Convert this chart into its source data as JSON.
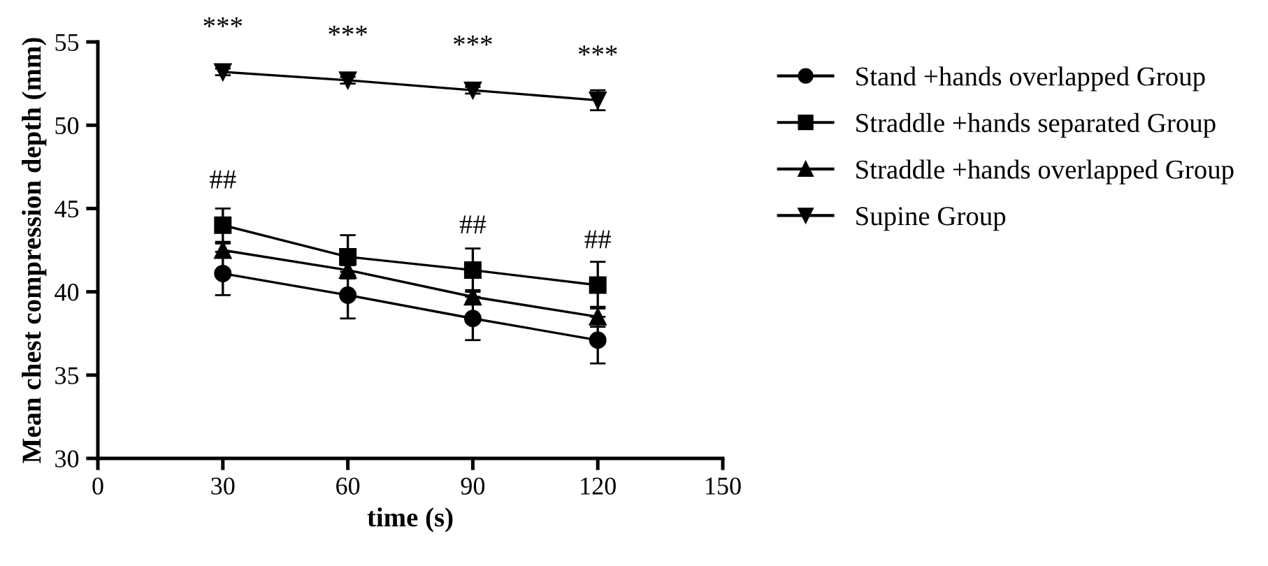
{
  "chart_data": {
    "type": "line",
    "xlabel": "time (s)",
    "ylabel": "Mean chest compression depth (mm)",
    "x": [
      30,
      60,
      90,
      120
    ],
    "xlim": [
      0,
      150
    ],
    "xticks": [
      0,
      30,
      60,
      90,
      120,
      150
    ],
    "ylim": [
      30,
      55
    ],
    "yticks": [
      30,
      35,
      40,
      45,
      50,
      55
    ],
    "grid": false,
    "legend": "right",
    "line_style": "solid",
    "series": [
      {
        "name": "Stand +hands overlapped Group",
        "color": "#000000",
        "marker": "circle",
        "values": [
          41.1,
          39.8,
          38.4,
          37.1
        ],
        "errors": [
          1.3,
          1.4,
          1.3,
          1.4
        ]
      },
      {
        "name": "Straddle +hands separated Group",
        "color": "#000000",
        "marker": "square",
        "values": [
          44.0,
          42.1,
          41.3,
          40.4
        ],
        "errors": [
          1.0,
          1.3,
          1.3,
          1.4
        ]
      },
      {
        "name": "Straddle +hands overlapped Group",
        "color": "#000000",
        "marker": "triangle",
        "values": [
          42.5,
          41.3,
          39.7,
          38.5
        ],
        "errors": [
          0.4,
          0.3,
          0.4,
          0.6
        ]
      },
      {
        "name": "Supine Group",
        "color": "#000000",
        "marker": "triangle_down",
        "values": [
          53.2,
          52.7,
          52.1,
          51.5
        ],
        "errors": [
          0.2,
          0.2,
          0.2,
          0.6
        ]
      }
    ],
    "annotations": [
      {
        "text": "***",
        "x": 30,
        "y": 53.2
      },
      {
        "text": "***",
        "x": 60,
        "y": 52.7
      },
      {
        "text": "***",
        "x": 90,
        "y": 52.1
      },
      {
        "text": "***",
        "x": 120,
        "y": 51.5
      },
      {
        "text": "##",
        "x": 30,
        "y": 44.0
      },
      {
        "text": "##",
        "x": 90,
        "y": 41.3
      },
      {
        "text": "##",
        "x": 120,
        "y": 40.4
      }
    ]
  }
}
